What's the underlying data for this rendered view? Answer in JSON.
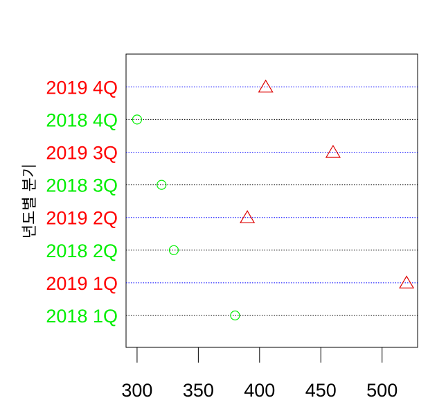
{
  "chart_data": {
    "type": "scatter",
    "title": "",
    "xlabel": "",
    "ylabel": "년도별 분기",
    "xlim": [
      291,
      529
    ],
    "x_ticks": [
      300,
      350,
      400,
      450,
      500
    ],
    "grid": "horizontal dotted lines per category",
    "legend": "none",
    "categories": [
      "2018 1Q",
      "2019 1Q",
      "2018 2Q",
      "2019 2Q",
      "2018 3Q",
      "2019 3Q",
      "2018 4Q",
      "2019 4Q"
    ],
    "values": [
      380,
      520,
      330,
      390,
      320,
      460,
      300,
      405
    ],
    "series": [
      {
        "year": "2018",
        "marker": "circle",
        "color": "#00ee00",
        "line_color": "#000000"
      },
      {
        "year": "2019",
        "marker": "triangle",
        "color": "#ff0000",
        "line_color": "#0000ff"
      }
    ],
    "category_series": [
      0,
      1,
      0,
      1,
      0,
      1,
      0,
      1
    ],
    "marker_color": "#dd0000"
  }
}
